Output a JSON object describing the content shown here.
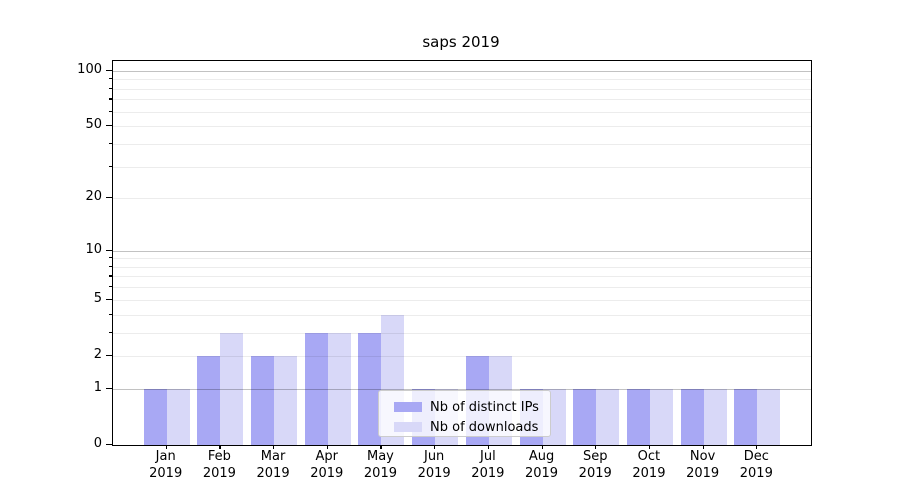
{
  "chart_data": {
    "type": "bar",
    "title": "saps 2019",
    "categories": [
      {
        "month": "Jan",
        "year": "2019"
      },
      {
        "month": "Feb",
        "year": "2019"
      },
      {
        "month": "Mar",
        "year": "2019"
      },
      {
        "month": "Apr",
        "year": "2019"
      },
      {
        "month": "May",
        "year": "2019"
      },
      {
        "month": "Jun",
        "year": "2019"
      },
      {
        "month": "Jul",
        "year": "2019"
      },
      {
        "month": "Aug",
        "year": "2019"
      },
      {
        "month": "Sep",
        "year": "2019"
      },
      {
        "month": "Oct",
        "year": "2019"
      },
      {
        "month": "Nov",
        "year": "2019"
      },
      {
        "month": "Dec",
        "year": "2019"
      }
    ],
    "series": [
      {
        "name": "Nb of distinct IPs",
        "color": "#a8a8f4",
        "values": [
          1,
          2,
          2,
          3,
          3,
          1,
          2,
          1,
          1,
          1,
          1,
          1
        ]
      },
      {
        "name": "Nb of downloads",
        "color": "#d8d8f8",
        "values": [
          1,
          3,
          2,
          3,
          4,
          1,
          2,
          1,
          1,
          1,
          1,
          1
        ]
      }
    ],
    "yscale": "log1p",
    "ylim": [
      0,
      113
    ],
    "yticks": [
      0,
      1,
      2,
      5,
      10,
      20,
      50,
      100
    ],
    "major_gridlines": [
      1,
      10,
      100
    ],
    "minor_gridlines": [
      2,
      3,
      4,
      5,
      6,
      7,
      8,
      9,
      20,
      30,
      40,
      50,
      60,
      70,
      80,
      90
    ],
    "grid": true,
    "legend_position": "lower center",
    "style": {
      "axis_color": "#000000",
      "grid_major_color": "#c4c4c4",
      "grid_minor_color": "#ececec",
      "legend_border": "#cccccc",
      "legend_background": "rgba(255,255,255,0.8)"
    }
  }
}
